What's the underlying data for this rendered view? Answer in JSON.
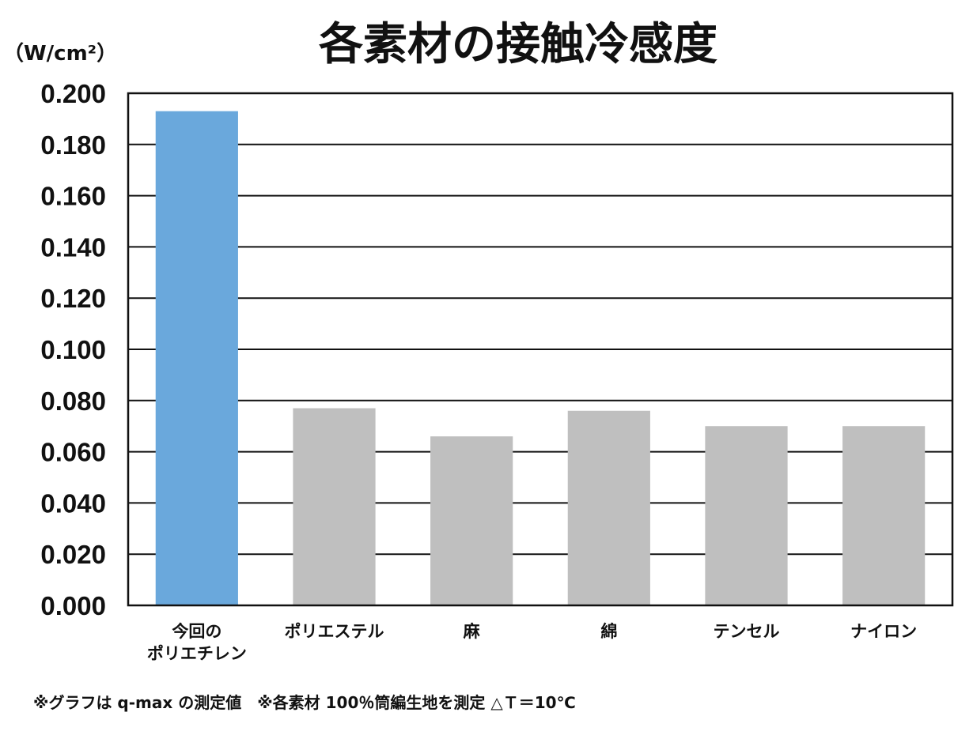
{
  "chart_data": {
    "type": "bar",
    "title": "各素材の接触冷感度",
    "ylabel": "（W/cm²）",
    "xlabel": "",
    "categories": [
      [
        "今回の",
        "ポリエチレン"
      ],
      [
        "ポリエステル"
      ],
      [
        "麻"
      ],
      [
        "綿"
      ],
      [
        "テンセル"
      ],
      [
        "ナイロン"
      ]
    ],
    "values": [
      0.193,
      0.077,
      0.066,
      0.076,
      0.07,
      0.07
    ],
    "bar_colors": [
      "#6aa8dc",
      "#bfbfbf",
      "#bfbfbf",
      "#bfbfbf",
      "#bfbfbf",
      "#bfbfbf"
    ],
    "ylim": [
      0,
      0.2
    ],
    "yticks": [
      "0.000",
      "0.020",
      "0.040",
      "0.060",
      "0.080",
      "0.100",
      "0.120",
      "0.140",
      "0.160",
      "0.180",
      "0.200"
    ],
    "grid": true,
    "legend": "none",
    "footnote": "※グラフは q-max の測定値　※各素材 100％筒編生地を測定 △Ｔ＝10℃"
  }
}
